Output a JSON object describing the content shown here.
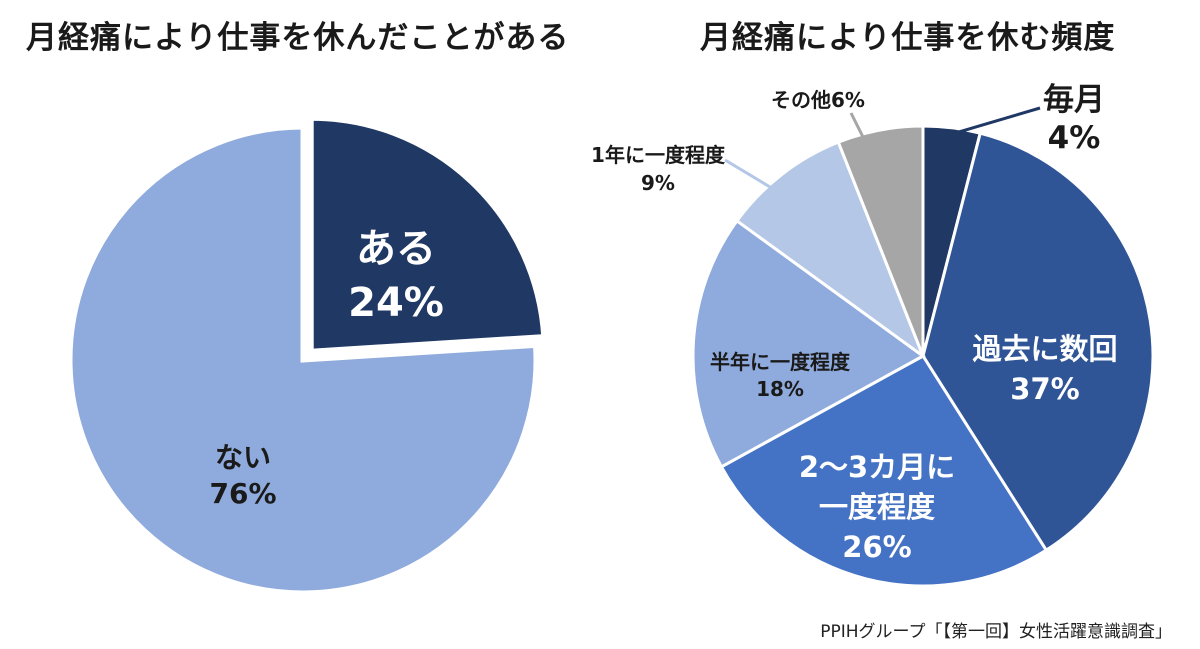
{
  "chart_data": [
    {
      "type": "pie",
      "title": "月経痛により仕事を休んだことがある",
      "slices": [
        {
          "label": "ある",
          "value": 24,
          "value_text": "24%",
          "color": "#1f3864",
          "exploded": true
        },
        {
          "label": "ない",
          "value": 76,
          "value_text": "76%",
          "color": "#8faadc"
        }
      ]
    },
    {
      "type": "pie",
      "title": "月経痛により仕事を休む頻度",
      "slices": [
        {
          "label": "毎月",
          "value": 4,
          "value_text": "4%",
          "color": "#203864"
        },
        {
          "label": "過去に数回",
          "value": 37,
          "value_text": "37%",
          "color": "#2f5597"
        },
        {
          "label": "2～3カ月に一度程度",
          "value": 26,
          "value_text": "26%",
          "color": "#4472c4"
        },
        {
          "label": "半年に一度程度",
          "value": 18,
          "value_text": "18%",
          "color": "#8faadc"
        },
        {
          "label": "1年に一度程度",
          "value": 9,
          "value_text": "9%",
          "color": "#b4c7e7"
        },
        {
          "label": "その他",
          "value": 6,
          "value_text": "6%",
          "color": "#a6a6a6"
        }
      ]
    }
  ],
  "source": "PPIHグループ「【第一回】女性活躍意識調査」"
}
